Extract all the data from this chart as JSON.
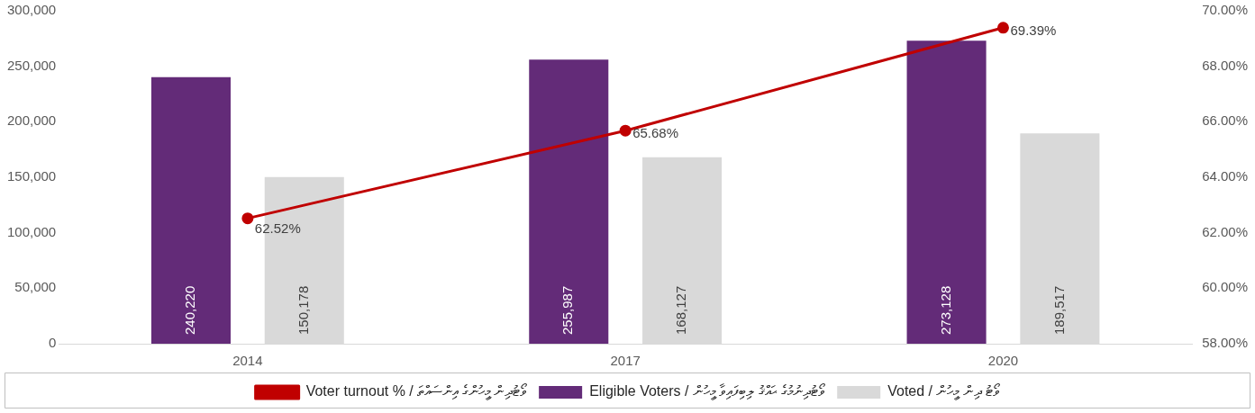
{
  "chart_data": {
    "type": "bar",
    "categories": [
      "2014",
      "2017",
      "2020"
    ],
    "series": [
      {
        "name": "Eligible Voters / ވޯޓުދިނުމުގެ ޙައްޤު ލިބިފައިވާ މީހުން",
        "color": "#632b78",
        "values": [
          240220,
          255987,
          273128
        ],
        "value_labels": [
          "240,220",
          "255,987",
          "273,128"
        ]
      },
      {
        "name": "Voted / ވޯޓު ދިން މީހުން",
        "color": "#d9d9d9",
        "values": [
          150178,
          168127,
          189517
        ],
        "value_labels": [
          "150,178",
          "168,127",
          "189,517"
        ]
      },
      {
        "name": "Voter turnout % / ވޯޓުދިން މީހުންގެ އިންސައްތަ",
        "type": "line",
        "axis": "y2",
        "color": "#c00000",
        "values": [
          62.52,
          65.68,
          69.39
        ],
        "value_labels": [
          "62.52%",
          "65.68%",
          "69.39%"
        ]
      }
    ],
    "ylim": [
      0,
      300000
    ],
    "yticks": [
      {
        "value": 0,
        "label": "0"
      },
      {
        "value": 50000,
        "label": "50,000"
      },
      {
        "value": 100000,
        "label": "100,000"
      },
      {
        "value": 150000,
        "label": "150,000"
      },
      {
        "value": 200000,
        "label": "200,000"
      },
      {
        "value": 250000,
        "label": "250,000"
      },
      {
        "value": 300000,
        "label": "300,000"
      }
    ],
    "y2lim": [
      58,
      70
    ],
    "y2ticks": [
      {
        "value": 58,
        "label": "58.00%"
      },
      {
        "value": 60,
        "label": "60.00%"
      },
      {
        "value": 62,
        "label": "62.00%"
      },
      {
        "value": 64,
        "label": "64.00%"
      },
      {
        "value": 66,
        "label": "66.00%"
      },
      {
        "value": 68,
        "label": "68.00%"
      },
      {
        "value": 70,
        "label": "70.00%"
      }
    ],
    "grid": false,
    "legend": "bottom",
    "marker": "circle",
    "line_style": "solid"
  }
}
